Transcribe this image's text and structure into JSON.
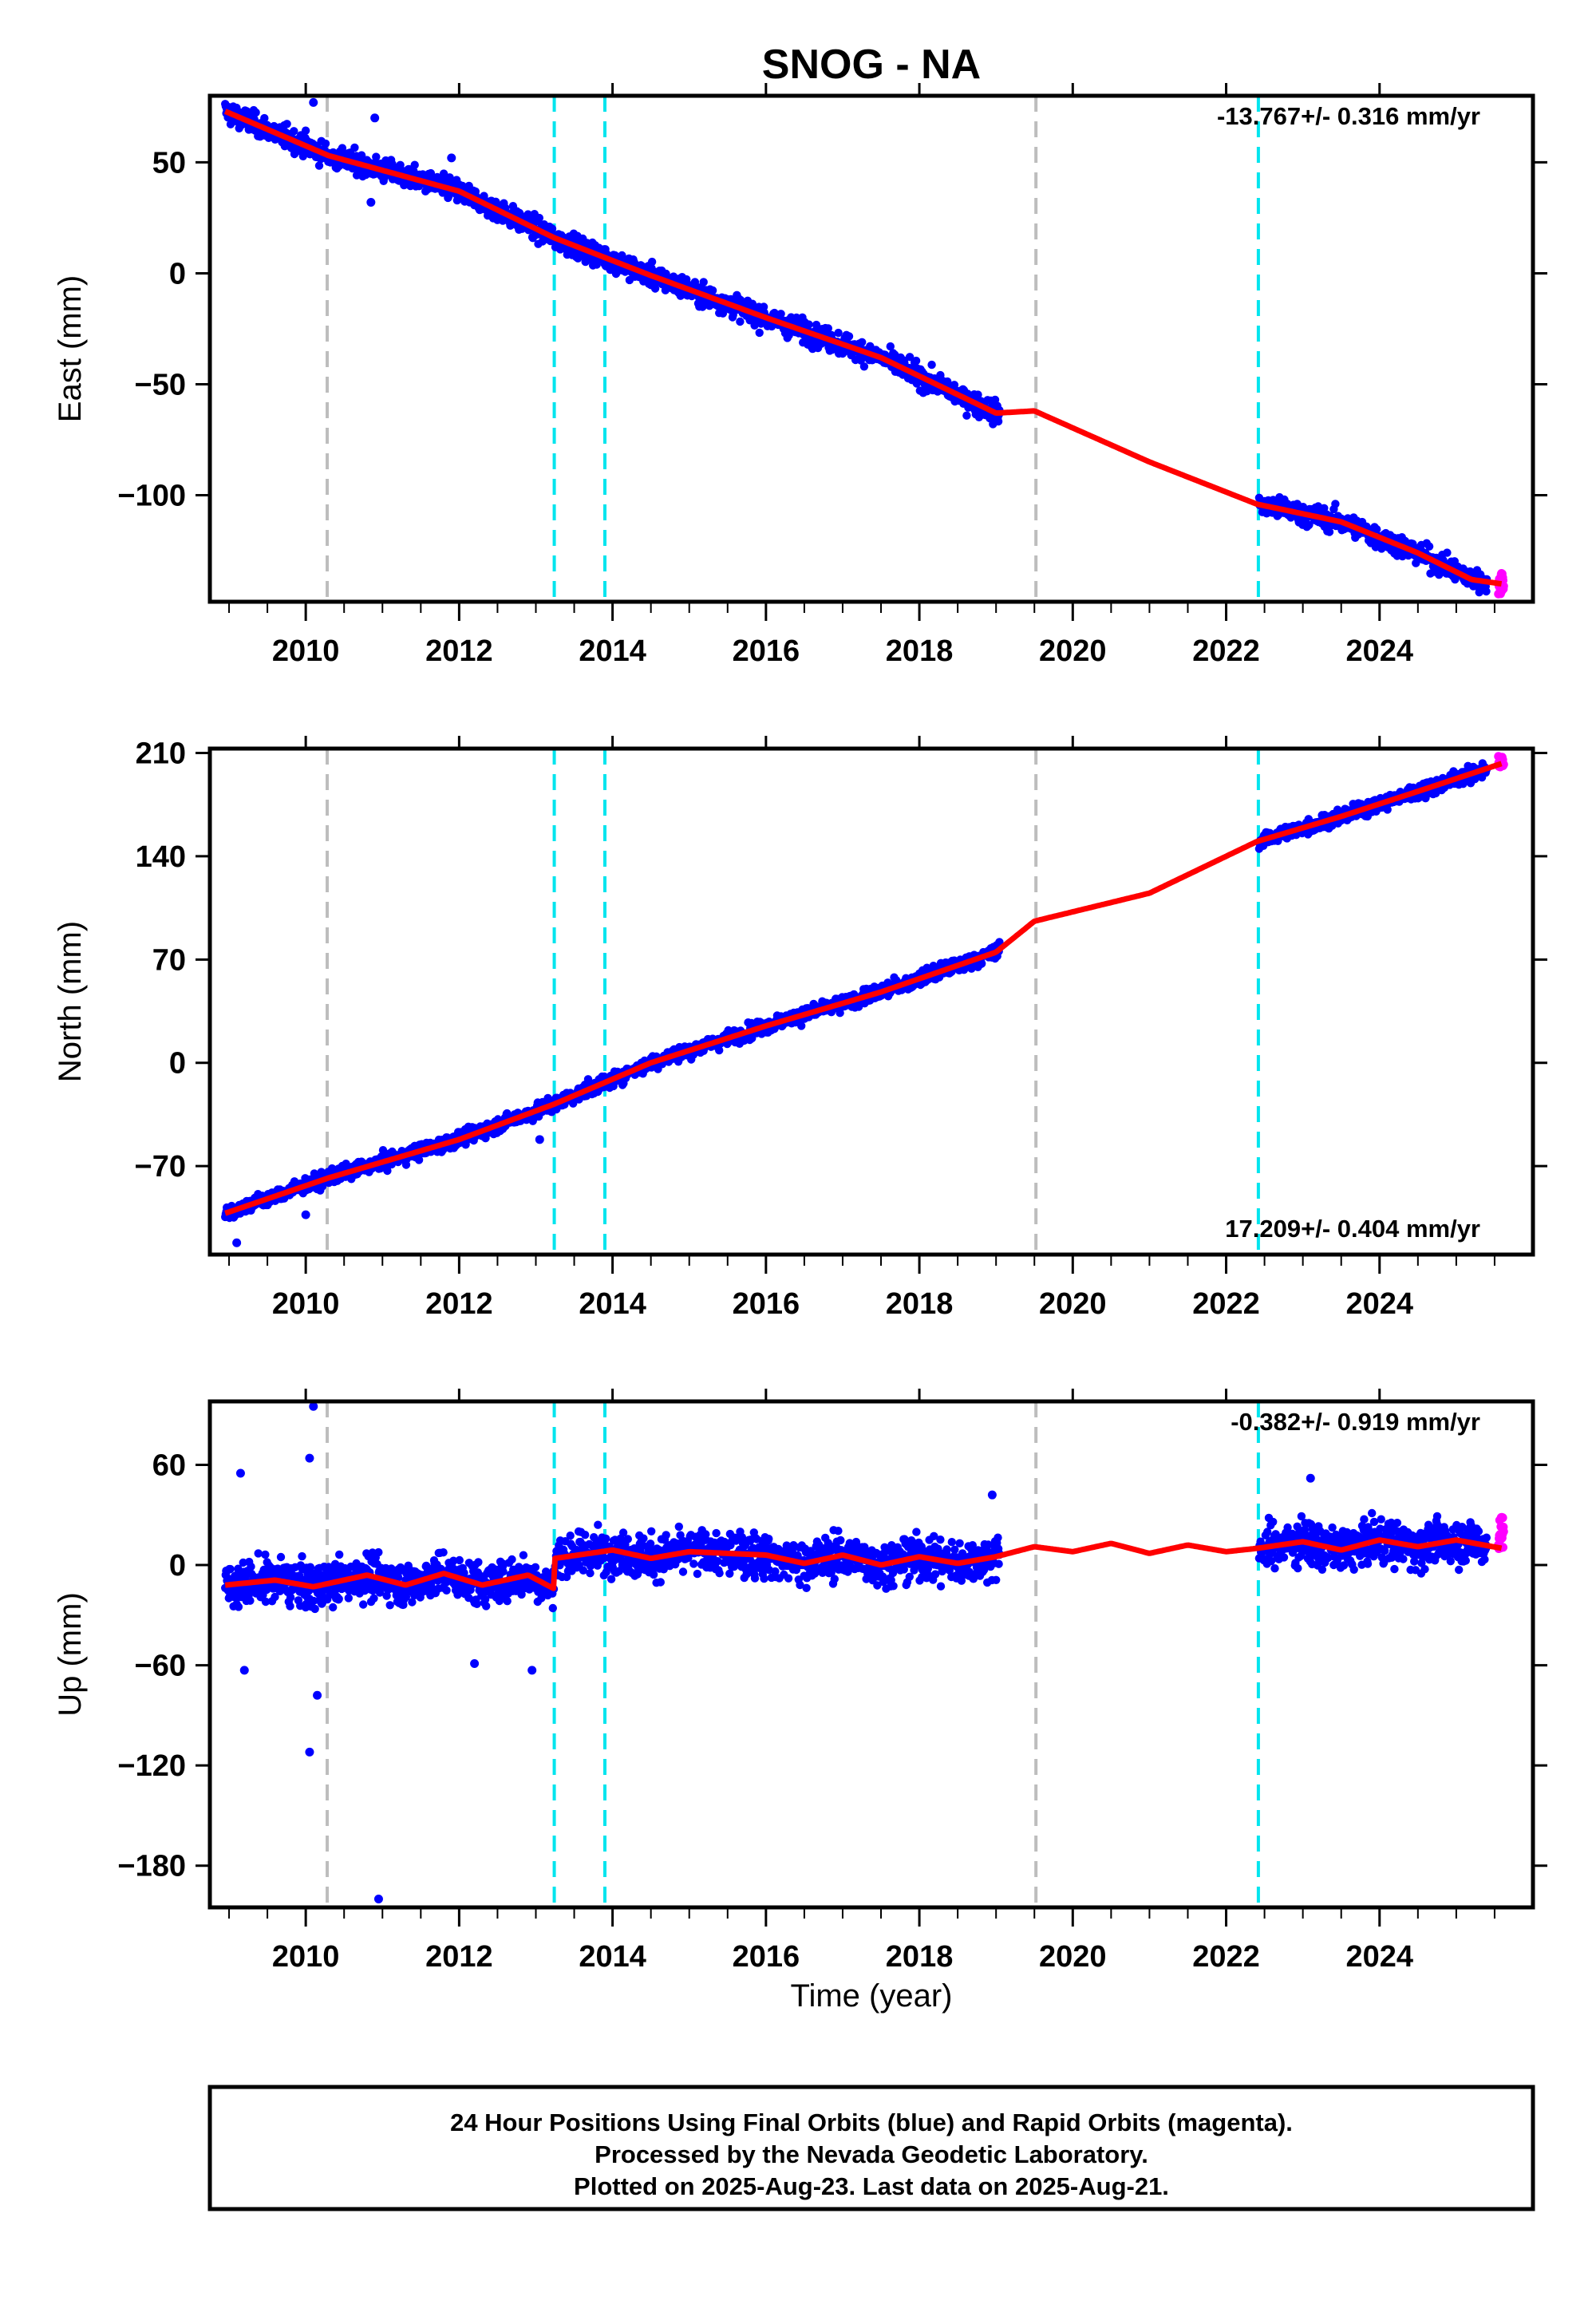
{
  "chart_data": {
    "type": "scatter",
    "title": "SNOG - NA",
    "xlabel": "Time (year)",
    "xlim": [
      2008.75,
      2026.0
    ],
    "xticks": [
      2010,
      2012,
      2014,
      2016,
      2018,
      2020,
      2022,
      2024
    ],
    "event_lines": [
      {
        "x": 2010.28,
        "color": "#bdbdbd"
      },
      {
        "x": 2013.24,
        "color": "#00e5ee"
      },
      {
        "x": 2013.9,
        "color": "#00e5ee"
      },
      {
        "x": 2019.52,
        "color": "#bdbdbd"
      },
      {
        "x": 2022.42,
        "color": "#00e5ee"
      }
    ],
    "colors": {
      "final": "#0000ff",
      "rapid": "#ff00ff",
      "model": "#ff0000"
    },
    "panels": [
      {
        "ylabel": "East (mm)",
        "ylim": [
          -148,
          80
        ],
        "yticks": [
          50,
          0,
          -50,
          -100
        ],
        "ytick_labels": [
          "50",
          "0",
          "−50",
          "−100"
        ],
        "rate_label": "-13.767+/- 0.316 mm/yr",
        "rate_position": "top-right",
        "model": {
          "x": [
            2008.95,
            2010.3,
            2012.0,
            2013.24,
            2014.5,
            2016.0,
            2017.5,
            2019.0,
            2019.5,
            2021.0,
            2022.4,
            2023.5,
            2024.5,
            2025.2,
            2025.6
          ],
          "y": [
            73,
            53,
            37,
            16,
            -1,
            -20,
            -38,
            -63,
            -62,
            -85,
            -104,
            -112,
            -126,
            -138,
            -140
          ]
        },
        "final_segments": [
          [
            2008.95,
            2019.05
          ],
          [
            2022.43,
            2025.4
          ]
        ],
        "noise": 3.5,
        "outliers": [
          {
            "x": 2010.1,
            "y": 77
          },
          {
            "x": 2010.9,
            "y": 70
          },
          {
            "x": 2011.9,
            "y": 52
          },
          {
            "x": 2010.85,
            "y": 32
          }
        ],
        "rapid": {
          "x": [
            2025.55,
            2025.62
          ],
          "y": [
            -135,
            -145
          ]
        }
      },
      {
        "ylabel": "North (mm)",
        "ylim": [
          -130,
          213
        ],
        "yticks": [
          210,
          140,
          70,
          0,
          -70
        ],
        "ytick_labels": [
          "210",
          "140",
          "70",
          "0",
          "−70"
        ],
        "rate_label": "17.209+/- 0.404 mm/yr",
        "rate_position": "bottom-right",
        "model": {
          "x": [
            2008.95,
            2010.3,
            2012.0,
            2013.24,
            2014.5,
            2016.0,
            2017.5,
            2019.0,
            2019.5,
            2021.0,
            2022.4,
            2023.5,
            2024.5,
            2025.6
          ],
          "y": [
            -102,
            -78,
            -52,
            -28,
            0,
            25,
            48,
            75,
            96,
            115,
            150,
            167,
            184,
            203
          ]
        },
        "final_segments": [
          [
            2008.95,
            2019.05
          ],
          [
            2022.43,
            2025.4
          ]
        ],
        "noise": 3.5,
        "outliers": [
          {
            "x": 2009.1,
            "y": -122
          },
          {
            "x": 2010.0,
            "y": -103
          },
          {
            "x": 2013.05,
            "y": -52
          }
        ],
        "rapid": {
          "x": [
            2025.55,
            2025.62
          ],
          "y": [
            200,
            208
          ]
        }
      },
      {
        "ylabel": "Up (mm)",
        "ylim": [
          -205,
          98
        ],
        "yticks": [
          60,
          0,
          -60,
          -120,
          -180
        ],
        "ytick_labels": [
          "60",
          "0",
          "−60",
          "−120",
          "−180"
        ],
        "rate_label": "-0.382+/- 0.919 mm/yr",
        "rate_position": "top-right",
        "model": {
          "x": [
            2008.95,
            2009.6,
            2010.1,
            2010.8,
            2011.3,
            2011.8,
            2012.3,
            2012.9,
            2013.23,
            2013.25,
            2014.0,
            2014.5,
            2015.0,
            2016.0,
            2016.5,
            2017.0,
            2017.5,
            2018.0,
            2018.5,
            2019.0,
            2019.5,
            2020.0,
            2020.5,
            2021.0,
            2021.5,
            2022.0,
            2022.4,
            2023.0,
            2023.5,
            2024.0,
            2024.5,
            2025.0,
            2025.6
          ],
          "y": [
            -12,
            -9,
            -13,
            -6,
            -12,
            -5,
            -12,
            -6,
            -14,
            4,
            9,
            4,
            8,
            6,
            1,
            6,
            0,
            5,
            1,
            5,
            11,
            8,
            13,
            7,
            12,
            8,
            10,
            14,
            9,
            15,
            11,
            15,
            10
          ]
        },
        "final_segments": [
          [
            2008.95,
            2019.05
          ],
          [
            2022.43,
            2025.4
          ]
        ],
        "noise": 9,
        "outliers": [
          {
            "x": 2010.1,
            "y": 95
          },
          {
            "x": 2010.05,
            "y": 64
          },
          {
            "x": 2009.15,
            "y": 55
          },
          {
            "x": 2010.05,
            "y": -112
          },
          {
            "x": 2010.15,
            "y": -78
          },
          {
            "x": 2010.95,
            "y": -200
          },
          {
            "x": 2012.2,
            "y": -59
          },
          {
            "x": 2012.95,
            "y": -63
          },
          {
            "x": 2009.2,
            "y": -63
          },
          {
            "x": 2023.1,
            "y": 52
          },
          {
            "x": 2018.95,
            "y": 42
          }
        ],
        "rapid": {
          "x": [
            2025.55,
            2025.62
          ],
          "y": [
            8,
            30
          ]
        }
      }
    ]
  },
  "caption": {
    "line1": "24 Hour Positions Using Final Orbits (blue) and Rapid Orbits (magenta).",
    "line2": "Processed by the Nevada Geodetic Laboratory.",
    "line3": "Plotted on 2025-Aug-23. Last data on 2025-Aug-21."
  }
}
